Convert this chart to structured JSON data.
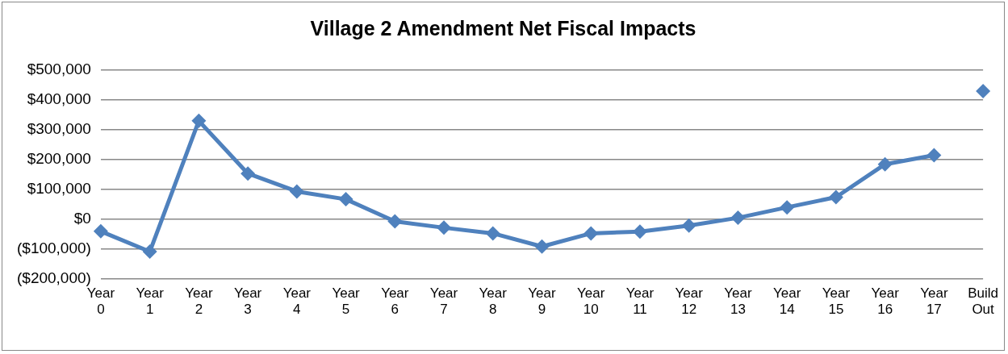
{
  "chart_data": {
    "type": "line",
    "title": "Village 2 Amendment Net Fiscal Impacts",
    "categories": [
      "Year 0",
      "Year 1",
      "Year 2",
      "Year 3",
      "Year 4",
      "Year 5",
      "Year 6",
      "Year 7",
      "Year 8",
      "Year 9",
      "Year 10",
      "Year 11",
      "Year 12",
      "Year 13",
      "Year 14",
      "Year 15",
      "Year 16",
      "Year 17",
      "Build Out"
    ],
    "series": [
      {
        "color": "#4f81bd",
        "values": [
          -40000,
          -108000,
          329000,
          153000,
          93000,
          67000,
          -7000,
          -28000,
          -47000,
          -91000,
          -47000,
          -41000,
          -21000,
          5000,
          40000,
          74000,
          184000,
          214000,
          null
        ]
      },
      {
        "type": "scatter",
        "color": "#4f81bd",
        "values": [
          null,
          null,
          null,
          null,
          null,
          null,
          null,
          null,
          null,
          null,
          null,
          null,
          null,
          null,
          null,
          null,
          null,
          null,
          428000
        ]
      }
    ],
    "ylim": [
      -200000,
      500000
    ],
    "yticks": [
      {
        "value": -200000,
        "label": "($200,000)"
      },
      {
        "value": -100000,
        "label": "($100,000)"
      },
      {
        "value": 0,
        "label": "$0"
      },
      {
        "value": 100000,
        "label": "$100,000"
      },
      {
        "value": 200000,
        "label": "$200,000"
      },
      {
        "value": 300000,
        "label": "$300,000"
      },
      {
        "value": 400000,
        "label": "$400,000"
      },
      {
        "value": 500000,
        "label": "$500,000"
      }
    ],
    "grid": "y",
    "legend": false,
    "marker": "diamond",
    "line_style": "solid"
  }
}
